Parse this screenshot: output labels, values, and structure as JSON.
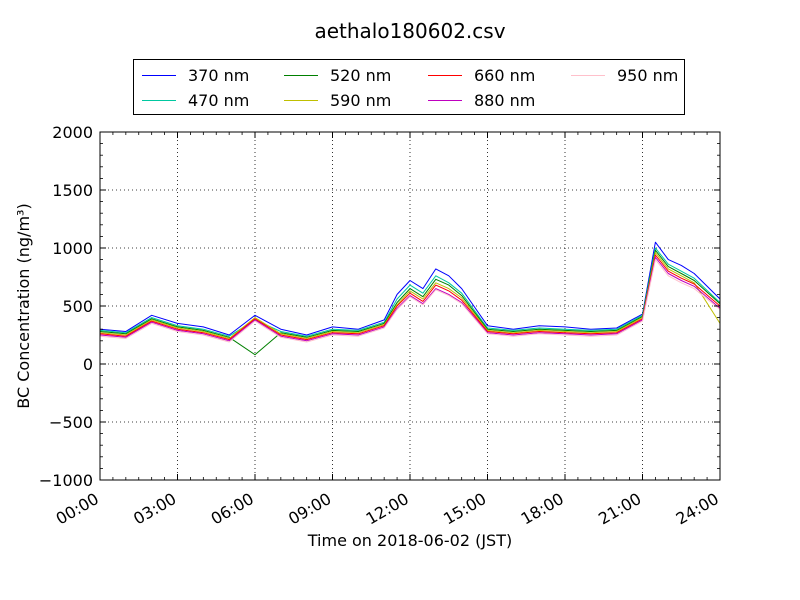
{
  "chart_data": {
    "type": "line",
    "title": "aethalo180602.csv",
    "xlabel": "Time on 2018-06-02 (JST)",
    "ylabel": "BC Concentration (ng/m³)",
    "ylim": [
      -1000,
      2000
    ],
    "xlim": [
      "00:00",
      "24:00"
    ],
    "x_ticks": [
      "00:00",
      "03:00",
      "06:00",
      "09:00",
      "12:00",
      "15:00",
      "18:00",
      "21:00",
      "24:00"
    ],
    "y_ticks": [
      "2000",
      "1500",
      "1000",
      "500",
      "0",
      "−500",
      "−1000"
    ],
    "y_tick_values": [
      2000,
      1500,
      1000,
      500,
      0,
      -500,
      -1000
    ],
    "grid": true,
    "grid_style": "dotted",
    "legend_position": "top, outside plot",
    "series": [
      {
        "name": "370 nm",
        "color": "#0000ff",
        "x": [
          "00:00",
          "01:00",
          "02:00",
          "03:00",
          "04:00",
          "05:00",
          "06:00",
          "07:00",
          "08:00",
          "09:00",
          "10:00",
          "11:00",
          "11:30",
          "12:00",
          "12:30",
          "13:00",
          "13:30",
          "14:00",
          "15:00",
          "16:00",
          "17:00",
          "18:00",
          "19:00",
          "20:00",
          "21:00",
          "21:30",
          "22:00",
          "22:30",
          "23:00",
          "24:00"
        ],
        "values": [
          300,
          280,
          420,
          350,
          320,
          250,
          420,
          300,
          250,
          320,
          300,
          380,
          600,
          720,
          650,
          820,
          760,
          650,
          330,
          300,
          330,
          320,
          300,
          310,
          430,
          1050,
          900,
          850,
          780,
          560
        ]
      },
      {
        "name": "470 nm",
        "color": "#00c8a0",
        "x": [
          "00:00",
          "01:00",
          "02:00",
          "03:00",
          "04:00",
          "05:00",
          "06:00",
          "07:00",
          "08:00",
          "09:00",
          "10:00",
          "11:00",
          "11:30",
          "12:00",
          "12:30",
          "13:00",
          "13:30",
          "14:00",
          "15:00",
          "16:00",
          "17:00",
          "18:00",
          "19:00",
          "20:00",
          "21:00",
          "21:30",
          "22:00",
          "22:30",
          "23:00",
          "24:00"
        ],
        "values": [
          290,
          270,
          400,
          330,
          300,
          240,
          380,
          280,
          240,
          300,
          290,
          360,
          560,
          680,
          610,
          760,
          700,
          610,
          310,
          290,
          310,
          300,
          290,
          300,
          420,
          1000,
          860,
          800,
          740,
          530
        ]
      },
      {
        "name": "520 nm",
        "color": "#008000",
        "x": [
          "00:00",
          "01:00",
          "02:00",
          "03:00",
          "04:00",
          "05:00",
          "06:00",
          "07:00",
          "08:00",
          "09:00",
          "10:00",
          "11:00",
          "11:30",
          "12:00",
          "12:30",
          "13:00",
          "13:30",
          "14:00",
          "15:00",
          "16:00",
          "17:00",
          "18:00",
          "19:00",
          "20:00",
          "21:00",
          "21:30",
          "22:00",
          "22:30",
          "23:00",
          "24:00"
        ],
        "values": [
          280,
          260,
          390,
          320,
          290,
          230,
          80,
          270,
          230,
          290,
          280,
          350,
          530,
          650,
          580,
          730,
          680,
          590,
          300,
          280,
          300,
          290,
          280,
          290,
          410,
          980,
          840,
          780,
          720,
          520
        ]
      },
      {
        "name": "590 nm",
        "color": "#bfbf00",
        "x": [
          "00:00",
          "01:00",
          "02:00",
          "03:00",
          "04:00",
          "05:00",
          "06:00",
          "07:00",
          "08:00",
          "09:00",
          "10:00",
          "11:00",
          "11:30",
          "12:00",
          "12:30",
          "13:00",
          "13:30",
          "14:00",
          "15:00",
          "16:00",
          "17:00",
          "18:00",
          "19:00",
          "20:00",
          "21:00",
          "21:30",
          "22:00",
          "22:30",
          "23:00",
          "24:00"
        ],
        "values": [
          270,
          250,
          380,
          310,
          280,
          220,
          400,
          260,
          220,
          280,
          270,
          340,
          510,
          630,
          560,
          700,
          650,
          570,
          290,
          270,
          290,
          280,
          270,
          280,
          400,
          960,
          820,
          760,
          700,
          350
        ]
      },
      {
        "name": "660 nm",
        "color": "#ff0000",
        "x": [
          "00:00",
          "01:00",
          "02:00",
          "03:00",
          "04:00",
          "05:00",
          "06:00",
          "07:00",
          "08:00",
          "09:00",
          "10:00",
          "11:00",
          "11:30",
          "12:00",
          "12:30",
          "13:00",
          "13:30",
          "14:00",
          "15:00",
          "16:00",
          "17:00",
          "18:00",
          "19:00",
          "20:00",
          "21:00",
          "21:30",
          "22:00",
          "22:30",
          "23:00",
          "24:00"
        ],
        "values": [
          260,
          240,
          370,
          300,
          270,
          210,
          390,
          250,
          210,
          270,
          260,
          330,
          500,
          610,
          540,
          680,
          630,
          550,
          280,
          260,
          280,
          270,
          260,
          270,
          390,
          940,
          800,
          740,
          690,
          500
        ]
      },
      {
        "name": "880 nm",
        "color": "#bf00bf",
        "x": [
          "00:00",
          "01:00",
          "02:00",
          "03:00",
          "04:00",
          "05:00",
          "06:00",
          "07:00",
          "08:00",
          "09:00",
          "10:00",
          "11:00",
          "11:30",
          "12:00",
          "12:30",
          "13:00",
          "13:30",
          "14:00",
          "15:00",
          "16:00",
          "17:00",
          "18:00",
          "19:00",
          "20:00",
          "21:00",
          "21:30",
          "22:00",
          "22:30",
          "23:00",
          "24:00"
        ],
        "values": [
          250,
          230,
          360,
          290,
          260,
          200,
          380,
          240,
          200,
          260,
          250,
          320,
          480,
          590,
          520,
          650,
          600,
          530,
          270,
          250,
          270,
          260,
          250,
          260,
          380,
          920,
          780,
          720,
          670,
          480
        ]
      },
      {
        "name": "950 nm",
        "color": "#ffc0cb",
        "x": [
          "00:00",
          "01:00",
          "02:00",
          "03:00",
          "04:00",
          "05:00",
          "06:00",
          "07:00",
          "08:00",
          "09:00",
          "10:00",
          "11:00",
          "11:30",
          "12:00",
          "12:30",
          "13:00",
          "13:30",
          "14:00",
          "15:00",
          "16:00",
          "17:00",
          "18:00",
          "19:00",
          "20:00",
          "21:00",
          "21:30",
          "22:00",
          "22:30",
          "23:00",
          "24:00"
        ],
        "values": [
          240,
          220,
          350,
          280,
          250,
          190,
          370,
          230,
          190,
          250,
          240,
          310,
          470,
          580,
          510,
          640,
          590,
          520,
          260,
          240,
          260,
          250,
          240,
          250,
          370,
          900,
          760,
          700,
          650,
          470
        ]
      }
    ]
  }
}
